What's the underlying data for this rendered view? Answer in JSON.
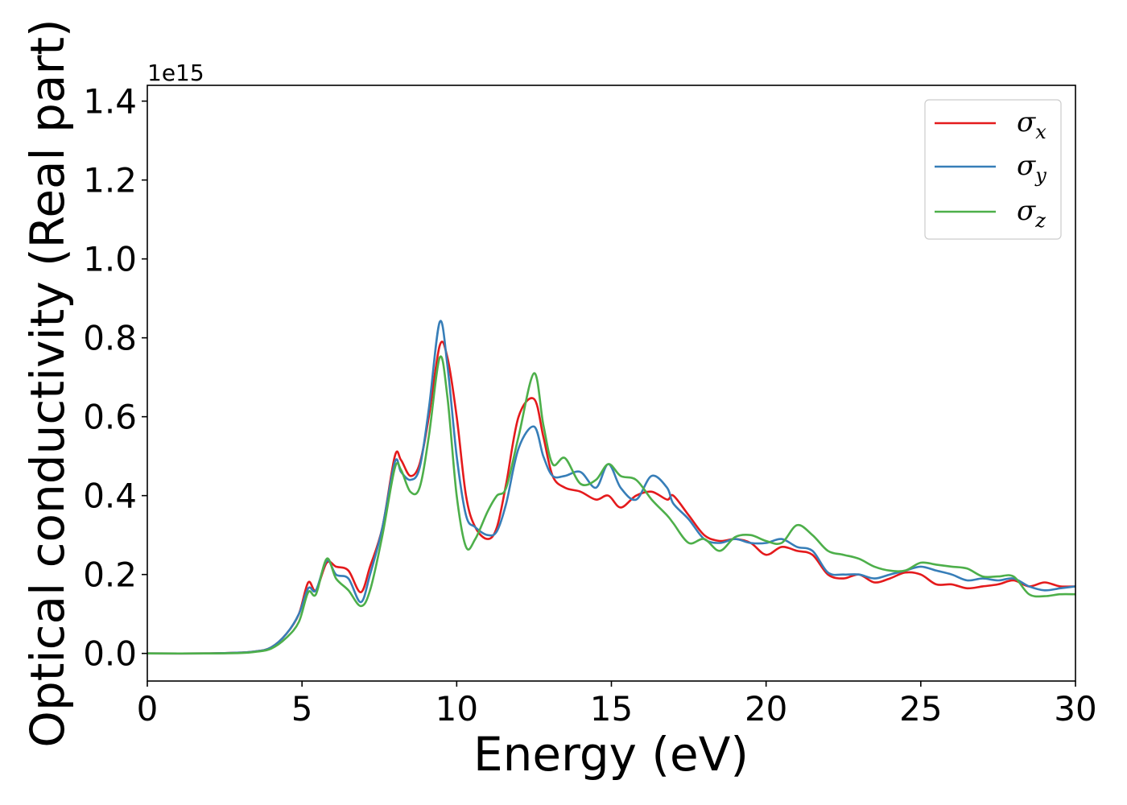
{
  "chart_data": {
    "type": "line",
    "xlabel": "Energy (eV)",
    "ylabel": "Optical conductivity (Real part)",
    "y_offset_label": "1e15",
    "xlim": [
      0,
      30
    ],
    "ylim": [
      -0.07,
      1.44
    ],
    "x_ticks": [
      0,
      5,
      10,
      15,
      20,
      25,
      30
    ],
    "x_tick_labels": [
      "0",
      "5",
      "10",
      "15",
      "20",
      "25",
      "30"
    ],
    "y_ticks": [
      0.0,
      0.2,
      0.4,
      0.6,
      0.8,
      1.0,
      1.2,
      1.4
    ],
    "y_tick_labels": [
      "0.0",
      "0.2",
      "0.4",
      "0.6",
      "0.8",
      "1.0",
      "1.2",
      "1.4"
    ],
    "grid": false,
    "legend_position": "top-right",
    "series": [
      {
        "name": "σx",
        "symbol": "σ",
        "subscript": "x",
        "color": "#e41a1c",
        "points": [
          [
            0,
            0
          ],
          [
            2,
            0
          ],
          [
            3,
            0.002
          ],
          [
            3.5,
            0.005
          ],
          [
            4,
            0.015
          ],
          [
            4.5,
            0.05
          ],
          [
            4.9,
            0.1
          ],
          [
            5.2,
            0.18
          ],
          [
            5.45,
            0.16
          ],
          [
            5.8,
            0.23
          ],
          [
            6.1,
            0.22
          ],
          [
            6.5,
            0.21
          ],
          [
            6.9,
            0.155
          ],
          [
            7.2,
            0.22
          ],
          [
            7.6,
            0.32
          ],
          [
            8.0,
            0.5
          ],
          [
            8.2,
            0.49
          ],
          [
            8.5,
            0.45
          ],
          [
            8.8,
            0.48
          ],
          [
            9.1,
            0.6
          ],
          [
            9.45,
            0.78
          ],
          [
            9.7,
            0.75
          ],
          [
            10.0,
            0.6
          ],
          [
            10.3,
            0.4
          ],
          [
            10.6,
            0.32
          ],
          [
            11.0,
            0.29
          ],
          [
            11.3,
            0.32
          ],
          [
            11.6,
            0.43
          ],
          [
            12.0,
            0.6
          ],
          [
            12.5,
            0.645
          ],
          [
            12.8,
            0.55
          ],
          [
            13.1,
            0.45
          ],
          [
            13.5,
            0.42
          ],
          [
            14.0,
            0.41
          ],
          [
            14.5,
            0.39
          ],
          [
            14.9,
            0.4
          ],
          [
            15.3,
            0.37
          ],
          [
            15.8,
            0.4
          ],
          [
            16.3,
            0.41
          ],
          [
            16.8,
            0.39
          ],
          [
            17.0,
            0.4
          ],
          [
            17.5,
            0.35
          ],
          [
            18.0,
            0.3
          ],
          [
            18.5,
            0.285
          ],
          [
            19.0,
            0.29
          ],
          [
            19.5,
            0.28
          ],
          [
            20.0,
            0.25
          ],
          [
            20.5,
            0.27
          ],
          [
            21.0,
            0.26
          ],
          [
            21.5,
            0.25
          ],
          [
            22.0,
            0.2
          ],
          [
            22.5,
            0.19
          ],
          [
            23.0,
            0.2
          ],
          [
            23.5,
            0.18
          ],
          [
            24.0,
            0.19
          ],
          [
            24.5,
            0.205
          ],
          [
            25.0,
            0.2
          ],
          [
            25.5,
            0.175
          ],
          [
            26.0,
            0.175
          ],
          [
            26.5,
            0.165
          ],
          [
            27.0,
            0.17
          ],
          [
            27.5,
            0.175
          ],
          [
            28.0,
            0.185
          ],
          [
            28.5,
            0.17
          ],
          [
            29.0,
            0.18
          ],
          [
            29.5,
            0.17
          ],
          [
            30.0,
            0.17
          ]
        ]
      },
      {
        "name": "σy",
        "symbol": "σ",
        "subscript": "y",
        "color": "#377eb8",
        "points": [
          [
            0,
            0
          ],
          [
            2,
            0
          ],
          [
            3,
            0.002
          ],
          [
            3.5,
            0.005
          ],
          [
            4,
            0.015
          ],
          [
            4.5,
            0.05
          ],
          [
            4.9,
            0.1
          ],
          [
            5.2,
            0.165
          ],
          [
            5.45,
            0.16
          ],
          [
            5.8,
            0.235
          ],
          [
            6.1,
            0.2
          ],
          [
            6.5,
            0.19
          ],
          [
            6.9,
            0.13
          ],
          [
            7.2,
            0.2
          ],
          [
            7.6,
            0.32
          ],
          [
            8.0,
            0.485
          ],
          [
            8.2,
            0.46
          ],
          [
            8.5,
            0.44
          ],
          [
            8.8,
            0.47
          ],
          [
            9.1,
            0.62
          ],
          [
            9.45,
            0.84
          ],
          [
            9.7,
            0.73
          ],
          [
            10.0,
            0.5
          ],
          [
            10.3,
            0.35
          ],
          [
            10.6,
            0.32
          ],
          [
            11.0,
            0.3
          ],
          [
            11.3,
            0.31
          ],
          [
            11.6,
            0.38
          ],
          [
            12.0,
            0.52
          ],
          [
            12.5,
            0.575
          ],
          [
            12.8,
            0.5
          ],
          [
            13.1,
            0.45
          ],
          [
            13.5,
            0.45
          ],
          [
            14.0,
            0.46
          ],
          [
            14.5,
            0.42
          ],
          [
            14.9,
            0.48
          ],
          [
            15.3,
            0.42
          ],
          [
            15.8,
            0.39
          ],
          [
            16.3,
            0.45
          ],
          [
            16.8,
            0.42
          ],
          [
            17.0,
            0.38
          ],
          [
            17.5,
            0.34
          ],
          [
            18.0,
            0.29
          ],
          [
            18.5,
            0.28
          ],
          [
            19.0,
            0.29
          ],
          [
            19.5,
            0.28
          ],
          [
            20.0,
            0.28
          ],
          [
            20.5,
            0.29
          ],
          [
            21.0,
            0.27
          ],
          [
            21.5,
            0.26
          ],
          [
            22.0,
            0.205
          ],
          [
            22.5,
            0.2
          ],
          [
            23.0,
            0.2
          ],
          [
            23.5,
            0.19
          ],
          [
            24.0,
            0.2
          ],
          [
            24.5,
            0.21
          ],
          [
            25.0,
            0.22
          ],
          [
            25.5,
            0.21
          ],
          [
            26.0,
            0.2
          ],
          [
            26.5,
            0.185
          ],
          [
            27.0,
            0.19
          ],
          [
            27.5,
            0.185
          ],
          [
            28.0,
            0.19
          ],
          [
            28.5,
            0.17
          ],
          [
            29.0,
            0.16
          ],
          [
            29.5,
            0.165
          ],
          [
            30.0,
            0.17
          ]
        ]
      },
      {
        "name": "σz",
        "symbol": "σ",
        "subscript": "z",
        "color": "#4daf4a",
        "points": [
          [
            0,
            0
          ],
          [
            2,
            0
          ],
          [
            3,
            0.001
          ],
          [
            3.5,
            0.004
          ],
          [
            4,
            0.012
          ],
          [
            4.5,
            0.04
          ],
          [
            4.9,
            0.08
          ],
          [
            5.2,
            0.155
          ],
          [
            5.45,
            0.15
          ],
          [
            5.8,
            0.24
          ],
          [
            6.1,
            0.19
          ],
          [
            6.5,
            0.16
          ],
          [
            6.9,
            0.12
          ],
          [
            7.2,
            0.16
          ],
          [
            7.6,
            0.3
          ],
          [
            8.0,
            0.47
          ],
          [
            8.2,
            0.465
          ],
          [
            8.5,
            0.41
          ],
          [
            8.8,
            0.42
          ],
          [
            9.1,
            0.55
          ],
          [
            9.45,
            0.75
          ],
          [
            9.7,
            0.65
          ],
          [
            10.0,
            0.4
          ],
          [
            10.3,
            0.27
          ],
          [
            10.6,
            0.29
          ],
          [
            11.0,
            0.36
          ],
          [
            11.3,
            0.4
          ],
          [
            11.6,
            0.42
          ],
          [
            12.0,
            0.55
          ],
          [
            12.5,
            0.71
          ],
          [
            12.8,
            0.58
          ],
          [
            13.1,
            0.48
          ],
          [
            13.5,
            0.495
          ],
          [
            14.0,
            0.43
          ],
          [
            14.5,
            0.44
          ],
          [
            14.9,
            0.48
          ],
          [
            15.3,
            0.45
          ],
          [
            15.8,
            0.44
          ],
          [
            16.3,
            0.39
          ],
          [
            16.8,
            0.35
          ],
          [
            17.0,
            0.33
          ],
          [
            17.5,
            0.28
          ],
          [
            18.0,
            0.29
          ],
          [
            18.5,
            0.26
          ],
          [
            19.0,
            0.295
          ],
          [
            19.5,
            0.3
          ],
          [
            20.0,
            0.285
          ],
          [
            20.5,
            0.28
          ],
          [
            21.0,
            0.325
          ],
          [
            21.5,
            0.3
          ],
          [
            22.0,
            0.26
          ],
          [
            22.5,
            0.25
          ],
          [
            23.0,
            0.24
          ],
          [
            23.5,
            0.22
          ],
          [
            24.0,
            0.21
          ],
          [
            24.5,
            0.21
          ],
          [
            25.0,
            0.23
          ],
          [
            25.5,
            0.225
          ],
          [
            26.0,
            0.22
          ],
          [
            26.5,
            0.215
          ],
          [
            27.0,
            0.195
          ],
          [
            27.5,
            0.195
          ],
          [
            28.0,
            0.195
          ],
          [
            28.5,
            0.15
          ],
          [
            29.0,
            0.145
          ],
          [
            29.5,
            0.15
          ],
          [
            30.0,
            0.15
          ]
        ]
      }
    ]
  }
}
